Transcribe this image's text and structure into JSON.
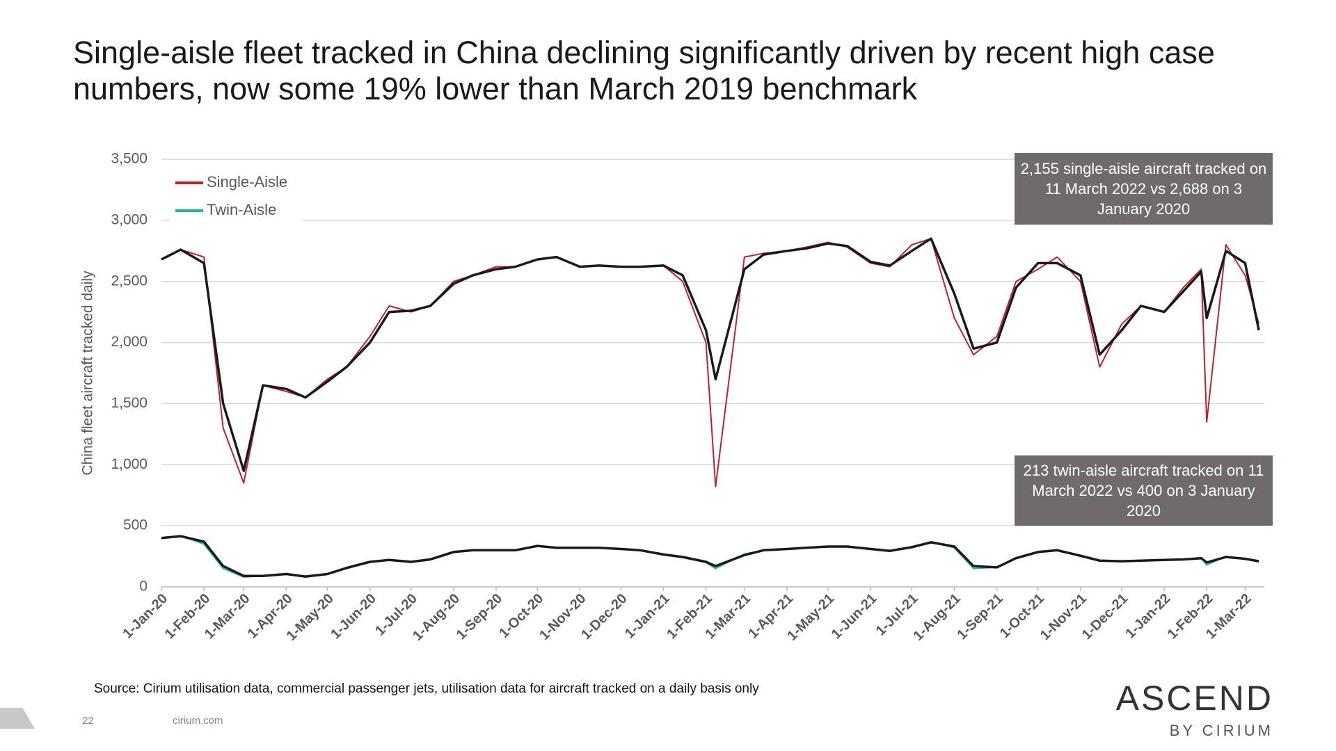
{
  "chart_data": {
    "type": "line",
    "title": "Single-aisle fleet tracked in China declining significantly driven by recent high case numbers, now some 19% lower than March 2019 benchmark",
    "y_label": "China fleet aircraft tracked daily",
    "annotations": [
      "2,155 single-aisle aircraft tracked on 11 March 2022 vs 2,688 on 3 January 2020",
      "213 twin-aisle aircraft tracked on 11 March 2022 vs 400 on 3 January 2020"
    ],
    "source": "Source: Cirium utilisation data, commercial passenger jets, utilisation data for aircraft tracked on a daily basis only",
    "page_number": "22",
    "website": "cirium.com",
    "logo": "ASCEND",
    "logo_sub": "BY CIRIUM",
    "x": [
      "2020-01-01",
      "2020-01-15",
      "2020-02-01",
      "2020-02-15",
      "2020-03-01",
      "2020-03-15",
      "2020-04-01",
      "2020-04-15",
      "2020-05-01",
      "2020-05-15",
      "2020-06-01",
      "2020-06-15",
      "2020-07-01",
      "2020-07-15",
      "2020-08-01",
      "2020-08-15",
      "2020-09-01",
      "2020-09-15",
      "2020-10-01",
      "2020-10-15",
      "2020-11-01",
      "2020-11-15",
      "2020-12-01",
      "2020-12-15",
      "2021-01-01",
      "2021-01-15",
      "2021-02-01",
      "2021-02-08",
      "2021-03-01",
      "2021-03-15",
      "2021-04-01",
      "2021-04-15",
      "2021-05-01",
      "2021-05-15",
      "2021-06-01",
      "2021-06-15",
      "2021-07-01",
      "2021-07-15",
      "2021-08-01",
      "2021-08-15",
      "2021-09-01",
      "2021-09-15",
      "2021-10-01",
      "2021-10-15",
      "2021-11-01",
      "2021-11-15",
      "2021-12-01",
      "2021-12-15",
      "2022-01-01",
      "2022-01-15",
      "2022-01-28",
      "2022-02-01",
      "2022-02-15",
      "2022-03-01",
      "2022-03-11"
    ],
    "series": [
      {
        "name": "Single-Aisle",
        "color": "#c0202e",
        "width": 2,
        "values": [
          2680,
          2760,
          2700,
          1300,
          850,
          1650,
          1600,
          1550,
          1700,
          1800,
          2050,
          2300,
          2250,
          2300,
          2500,
          2550,
          2620,
          2620,
          2680,
          2700,
          2620,
          2630,
          2620,
          2620,
          2630,
          2500,
          2000,
          820,
          2700,
          2730,
          2750,
          2780,
          2820,
          2780,
          2650,
          2620,
          2800,
          2850,
          2200,
          1900,
          2050,
          2500,
          2600,
          2700,
          2500,
          1800,
          2150,
          2300,
          2250,
          2450,
          2600,
          1350,
          2800,
          2550,
          2155
        ]
      },
      {
        "name": "Twin-Aisle",
        "color": "#1fb89a",
        "width": 2,
        "values": [
          400,
          420,
          350,
          150,
          80,
          90,
          110,
          80,
          110,
          160,
          210,
          220,
          200,
          230,
          290,
          300,
          300,
          300,
          340,
          320,
          320,
          320,
          310,
          300,
          260,
          240,
          200,
          150,
          270,
          300,
          310,
          320,
          330,
          330,
          310,
          290,
          330,
          370,
          320,
          150,
          160,
          240,
          290,
          300,
          250,
          210,
          210,
          215,
          220,
          225,
          240,
          180,
          250,
          230,
          213
        ]
      },
      {
        "color": "#1a1a1a",
        "width": 3.5,
        "values": [
          2680,
          2760,
          2650,
          1500,
          950,
          1650,
          1620,
          1550,
          1680,
          1800,
          2000,
          2250,
          2260,
          2300,
          2480,
          2550,
          2600,
          2620,
          2680,
          2700,
          2620,
          2630,
          2620,
          2620,
          2630,
          2550,
          2100,
          1700,
          2600,
          2720,
          2750,
          2770,
          2810,
          2790,
          2660,
          2630,
          2750,
          2850,
          2400,
          1950,
          2000,
          2450,
          2650,
          2650,
          2550,
          1900,
          2100,
          2300,
          2250,
          2420,
          2580,
          2200,
          2750,
          2650,
          2100
        ]
      },
      {
        "color": "#1a1a1a",
        "width": 3.5,
        "values": [
          400,
          415,
          370,
          170,
          90,
          90,
          105,
          85,
          105,
          155,
          205,
          220,
          205,
          225,
          285,
          300,
          300,
          300,
          335,
          320,
          320,
          320,
          310,
          300,
          265,
          245,
          205,
          170,
          260,
          300,
          310,
          320,
          330,
          330,
          310,
          295,
          325,
          365,
          330,
          170,
          160,
          235,
          285,
          300,
          255,
          215,
          210,
          215,
          220,
          225,
          235,
          200,
          245,
          230,
          210
        ]
      }
    ],
    "xlim": [
      "2020-01-01",
      "2022-03-15"
    ],
    "xticks": [
      {
        "value": "2020-01-01",
        "label": "1-Jan-20"
      },
      {
        "value": "2020-02-01",
        "label": "1-Feb-20"
      },
      {
        "value": "2020-03-01",
        "label": "1-Mar-20"
      },
      {
        "value": "2020-04-01",
        "label": "1-Apr-20"
      },
      {
        "value": "2020-05-01",
        "label": "1-May-20"
      },
      {
        "value": "2020-06-01",
        "label": "1-Jun-20"
      },
      {
        "value": "2020-07-01",
        "label": "1-Jul-20"
      },
      {
        "value": "2020-08-01",
        "label": "1-Aug-20"
      },
      {
        "value": "2020-09-01",
        "label": "1-Sep-20"
      },
      {
        "value": "2020-10-01",
        "label": "1-Oct-20"
      },
      {
        "value": "2020-11-01",
        "label": "1-Nov-20"
      },
      {
        "value": "2020-12-01",
        "label": "1-Dec-20"
      },
      {
        "value": "2021-01-01",
        "label": "1-Jan-21"
      },
      {
        "value": "2021-02-01",
        "label": "1-Feb-21"
      },
      {
        "value": "2021-03-01",
        "label": "1-Mar-21"
      },
      {
        "value": "2021-04-01",
        "label": "1-Apr-21"
      },
      {
        "value": "2021-05-01",
        "label": "1-May-21"
      },
      {
        "value": "2021-06-01",
        "label": "1-Jun-21"
      },
      {
        "value": "2021-07-01",
        "label": "1-Jul-21"
      },
      {
        "value": "2021-08-01",
        "label": "1-Aug-21"
      },
      {
        "value": "2021-09-01",
        "label": "1-Sep-21"
      },
      {
        "value": "2021-10-01",
        "label": "1-Oct-21"
      },
      {
        "value": "2021-11-01",
        "label": "1-Nov-21"
      },
      {
        "value": "2021-12-01",
        "label": "1-Dec-21"
      },
      {
        "value": "2022-01-01",
        "label": "1-Jan-22"
      },
      {
        "value": "2022-02-01",
        "label": "1-Feb-22"
      },
      {
        "value": "2022-03-01",
        "label": "1-Mar-22"
      }
    ],
    "ylim": [
      0,
      3500
    ],
    "yticks": [
      0,
      500,
      {
        "value": 1000,
        "label": "1,000"
      },
      {
        "value": 1500,
        "label": "1,500"
      },
      {
        "value": 2000,
        "label": "2,000"
      },
      {
        "value": 2500,
        "label": "2,500"
      },
      {
        "value": 3000,
        "label": "3,000"
      },
      {
        "value": 3500,
        "label": "3,500"
      }
    ],
    "grid": true,
    "legend": "upper left"
  }
}
